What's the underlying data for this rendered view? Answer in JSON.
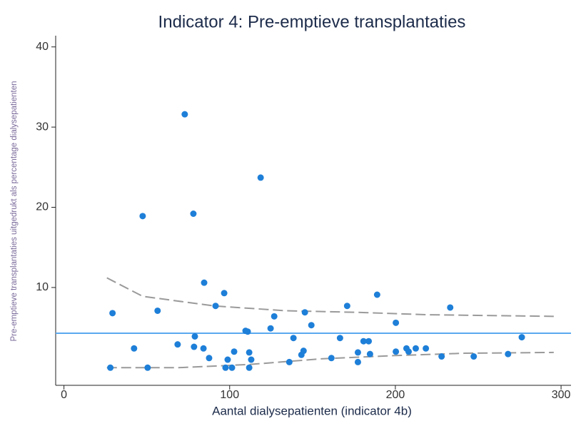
{
  "chart_data": {
    "type": "scatter",
    "title": "Indicator 4: Pre-emptieve transplantaties",
    "x_label": "Aantal dialysepatienten (indicator 4b)",
    "y_label": "Pre-emptieve transplantaties uitgedrukt als percentage dialysepatienten",
    "xlim": [
      -5,
      306
    ],
    "ylim": [
      -2.2,
      41.4
    ],
    "xticks": [
      0,
      100,
      200,
      300
    ],
    "yticks": [
      10,
      20,
      30,
      40
    ],
    "points": {
      "color": "#1e7fd8",
      "x": [
        28,
        29.3,
        42.3,
        47.5,
        50.5,
        56.5,
        68.6,
        72.9,
        78.1,
        79,
        78.5,
        84.2,
        84.6,
        87.6,
        91.5,
        96.7,
        97.5,
        98.8,
        101.4,
        102.7,
        109.6,
        110.9,
        111.8,
        111.8,
        113,
        118.7,
        124.7,
        126.9,
        136,
        138.5,
        143.3,
        144.6,
        145.4,
        149.3,
        161.4,
        166.6,
        170.9,
        177.4,
        177.4,
        180.8,
        183.9,
        184.7,
        189,
        200.3,
        200.3,
        206.7,
        208,
        212.3,
        218.4,
        227.9,
        233.1,
        247.3,
        268,
        276.3
      ],
      "values": [
        0,
        6.8,
        2.4,
        18.9,
        0,
        7.1,
        2.9,
        31.6,
        19.2,
        3.9,
        2.6,
        2.4,
        10.6,
        1.2,
        7.7,
        9.3,
        0,
        1,
        0,
        2,
        4.6,
        4.5,
        1.9,
        0,
        1,
        23.7,
        4.9,
        6.4,
        0.7,
        3.7,
        1.6,
        2.1,
        6.9,
        5.3,
        1.2,
        3.7,
        7.7,
        1.9,
        0.7,
        3.3,
        3.3,
        1.7,
        9.1,
        2,
        5.6,
        2.4,
        2,
        2.4,
        2.4,
        1.4,
        7.5,
        1.4,
        1.7,
        3.8
      ]
    },
    "reference_line": {
      "value": 4.3,
      "color": "#5aa9f0"
    },
    "upper_limit": {
      "color": "#9a9a9a",
      "x": [
        25.9,
        47.5,
        90.6,
        133.8,
        177,
        220,
        295.6
      ],
      "values": [
        11.2,
        8.9,
        7.7,
        7.1,
        6.9,
        6.6,
        6.4
      ]
    },
    "lower_limit": {
      "color": "#9a9a9a",
      "x": [
        25.9,
        69,
        112,
        155,
        198.5,
        241.7,
        295.6
      ],
      "values": [
        0,
        0,
        0.4,
        1.1,
        1.5,
        1.8,
        1.9
      ]
    }
  }
}
